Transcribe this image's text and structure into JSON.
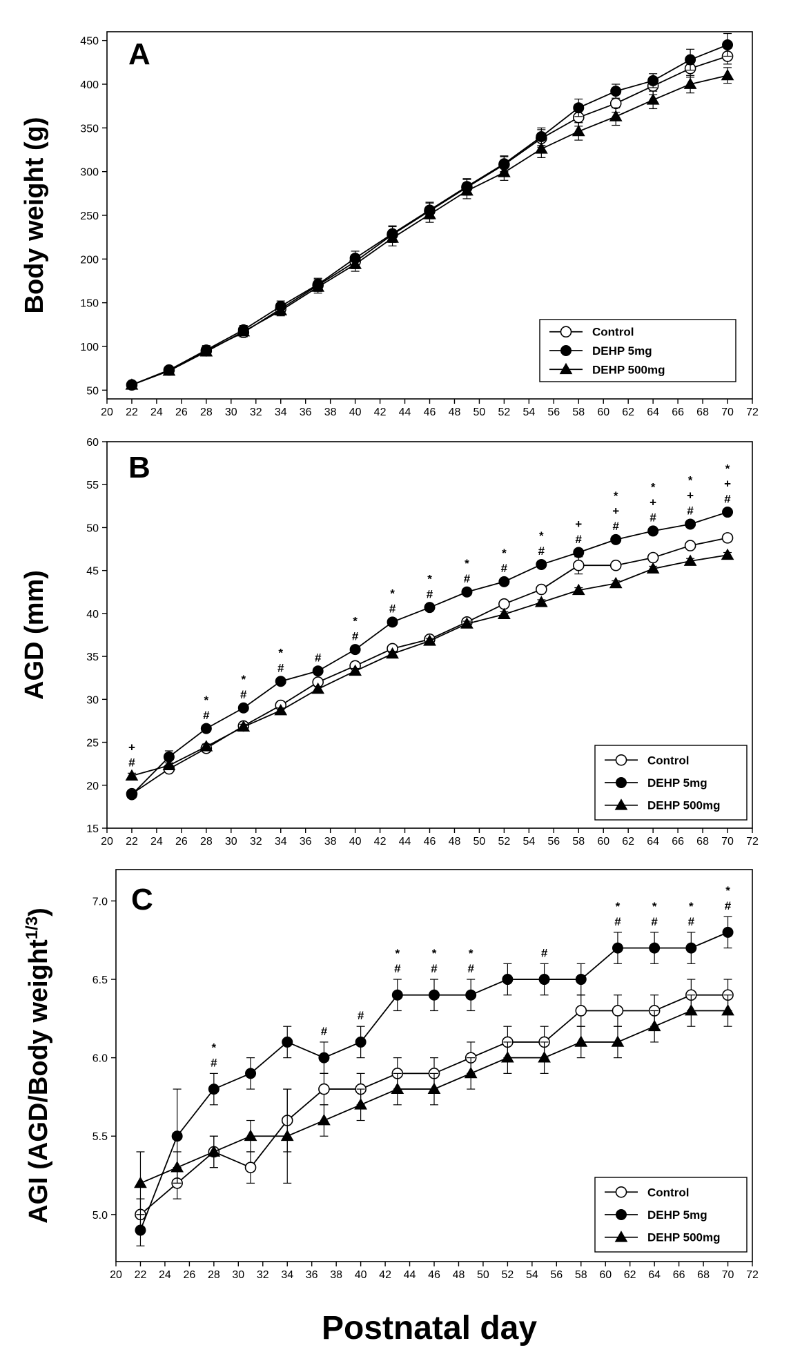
{
  "figure": {
    "xlabel": "Postnatal day"
  },
  "chart_data": [
    {
      "type": "line",
      "panel_label": "A",
      "ylabel": "Body weight (g)",
      "xlim": [
        20,
        72
      ],
      "ylim": [
        40,
        460
      ],
      "xticks": [
        20,
        22,
        24,
        26,
        28,
        30,
        32,
        34,
        36,
        38,
        40,
        42,
        44,
        46,
        48,
        50,
        52,
        54,
        56,
        58,
        60,
        62,
        64,
        66,
        68,
        70,
        72
      ],
      "yticks": [
        50,
        100,
        150,
        200,
        250,
        300,
        350,
        400,
        450
      ],
      "x": [
        22,
        25,
        28,
        31,
        34,
        37,
        40,
        43,
        46,
        49,
        52,
        55,
        58,
        61,
        64,
        67,
        70
      ],
      "legend": {
        "position": "bottom-right"
      },
      "series": [
        {
          "name": "Control",
          "marker": "open-circle",
          "values": [
            56,
            73,
            95,
            116,
            143,
            170,
            197,
            228,
            255,
            282,
            308,
            338,
            362,
            378,
            398,
            418,
            432
          ],
          "errors": [
            4,
            4,
            5,
            5,
            6,
            7,
            8,
            9,
            9,
            9,
            9,
            10,
            10,
            10,
            10,
            10,
            9
          ]
        },
        {
          "name": "DEHP 5mg",
          "marker": "filled-circle",
          "values": [
            56,
            73,
            96,
            119,
            146,
            171,
            201,
            229,
            256,
            283,
            309,
            340,
            373,
            392,
            404,
            428,
            445
          ],
          "errors": [
            4,
            4,
            5,
            5,
            6,
            7,
            8,
            9,
            9,
            9,
            9,
            10,
            10,
            8,
            8,
            12,
            13
          ]
        },
        {
          "name": "DEHP 500mg",
          "marker": "filled-triangle",
          "values": [
            56,
            72,
            94,
            117,
            141,
            168,
            194,
            224,
            251,
            278,
            299,
            326,
            346,
            363,
            382,
            400,
            410
          ],
          "errors": [
            4,
            4,
            5,
            5,
            6,
            7,
            8,
            9,
            9,
            9,
            9,
            10,
            10,
            10,
            10,
            10,
            9
          ]
        }
      ],
      "annotations": []
    },
    {
      "type": "line",
      "panel_label": "B",
      "ylabel": "AGD (mm)",
      "xlim": [
        20,
        72
      ],
      "ylim": [
        15,
        60
      ],
      "xticks": [
        20,
        22,
        24,
        26,
        28,
        30,
        32,
        34,
        36,
        38,
        40,
        42,
        44,
        46,
        48,
        50,
        52,
        54,
        56,
        58,
        60,
        62,
        64,
        66,
        68,
        70,
        72
      ],
      "yticks": [
        15,
        20,
        25,
        30,
        35,
        40,
        45,
        50,
        55,
        60
      ],
      "x": [
        22,
        25,
        28,
        31,
        34,
        37,
        40,
        43,
        46,
        49,
        52,
        55,
        58,
        61,
        64,
        67,
        70
      ],
      "legend": {
        "position": "bottom-right"
      },
      "series": [
        {
          "name": "Control",
          "marker": "open-circle",
          "values": [
            19.0,
            21.9,
            24.3,
            26.9,
            29.3,
            32.0,
            33.9,
            35.9,
            37.0,
            39.0,
            41.1,
            42.8,
            45.6,
            45.6,
            46.5,
            47.9,
            48.8
          ],
          "errors": [
            0.3,
            0.3,
            0.3,
            0.3,
            0.3,
            0.3,
            0.3,
            0.3,
            0.3,
            0.3,
            0.3,
            0.3,
            1.0,
            0.3,
            0.3,
            0.3,
            0.3
          ]
        },
        {
          "name": "DEHP 5mg",
          "marker": "filled-circle",
          "values": [
            18.9,
            23.3,
            26.6,
            29.0,
            32.1,
            33.3,
            35.8,
            39.0,
            40.7,
            42.5,
            43.7,
            45.7,
            47.1,
            48.6,
            49.6,
            50.4,
            51.8
          ],
          "errors": [
            0.3,
            0.7,
            0.3,
            0.3,
            0.3,
            0.3,
            0.3,
            0.3,
            0.3,
            0.3,
            0.3,
            0.3,
            0.3,
            0.3,
            0.3,
            0.3,
            0.3
          ]
        },
        {
          "name": "DEHP 500mg",
          "marker": "filled-triangle",
          "values": [
            21.1,
            22.3,
            24.5,
            26.8,
            28.7,
            31.2,
            33.3,
            35.3,
            36.8,
            38.8,
            39.9,
            41.3,
            42.7,
            43.5,
            45.2,
            46.1,
            46.8
          ],
          "errors": [
            0.3,
            0.3,
            0.3,
            0.3,
            0.3,
            0.3,
            0.3,
            0.3,
            0.3,
            0.3,
            0.3,
            0.3,
            0.3,
            0.3,
            0.3,
            0.3,
            0.3
          ]
        }
      ],
      "annotations": [
        {
          "x": 22,
          "symbols": [
            "+",
            "#"
          ]
        },
        {
          "x": 28,
          "symbols": [
            "*",
            "#"
          ]
        },
        {
          "x": 31,
          "symbols": [
            "*",
            "#"
          ]
        },
        {
          "x": 34,
          "symbols": [
            "*",
            "#"
          ]
        },
        {
          "x": 37,
          "symbols": [
            "#"
          ]
        },
        {
          "x": 40,
          "symbols": [
            "*",
            "#"
          ]
        },
        {
          "x": 43,
          "symbols": [
            "*",
            "#"
          ]
        },
        {
          "x": 46,
          "symbols": [
            "*",
            "#"
          ]
        },
        {
          "x": 49,
          "symbols": [
            "*",
            "#"
          ]
        },
        {
          "x": 52,
          "symbols": [
            "*",
            "#"
          ]
        },
        {
          "x": 55,
          "symbols": [
            "*",
            "#"
          ]
        },
        {
          "x": 58,
          "symbols": [
            "+",
            "#"
          ]
        },
        {
          "x": 61,
          "symbols": [
            "*",
            "+",
            "#"
          ]
        },
        {
          "x": 64,
          "symbols": [
            "*",
            "+",
            "#"
          ]
        },
        {
          "x": 67,
          "symbols": [
            "*",
            "+",
            "#"
          ]
        },
        {
          "x": 70,
          "symbols": [
            "*",
            "+",
            "#"
          ]
        }
      ]
    },
    {
      "type": "line",
      "panel_label": "C",
      "ylabel": "AGI (AGD/Body weight",
      "ylabel_superscript": "1/3",
      "ylabel_suffix": ")",
      "xlim": [
        20,
        72
      ],
      "ylim": [
        4.7,
        7.2
      ],
      "xticks": [
        20,
        22,
        24,
        26,
        28,
        30,
        32,
        34,
        36,
        38,
        40,
        42,
        44,
        46,
        48,
        50,
        52,
        54,
        56,
        58,
        60,
        62,
        64,
        66,
        68,
        70,
        72
      ],
      "yticks": [
        "5.0",
        "5.5",
        "6.0",
        "6.5",
        "7.0"
      ],
      "x": [
        22,
        25,
        28,
        31,
        34,
        37,
        40,
        43,
        46,
        49,
        52,
        55,
        58,
        61,
        64,
        67,
        70
      ],
      "legend": {
        "position": "bottom-right"
      },
      "series": [
        {
          "name": "Control",
          "marker": "open-circle",
          "values": [
            5.0,
            5.2,
            5.4,
            5.3,
            5.6,
            5.8,
            5.8,
            5.9,
            5.9,
            6.0,
            6.1,
            6.1,
            6.3,
            6.3,
            6.3,
            6.4,
            6.4
          ],
          "errors": [
            0.1,
            0.1,
            0.1,
            0.1,
            0.2,
            0.1,
            0.1,
            0.1,
            0.1,
            0.1,
            0.1,
            0.1,
            0.1,
            0.1,
            0.1,
            0.1,
            0.1
          ]
        },
        {
          "name": "DEHP 5mg",
          "marker": "filled-circle",
          "values": [
            4.9,
            5.5,
            5.8,
            5.9,
            6.1,
            6.0,
            6.1,
            6.4,
            6.4,
            6.4,
            6.5,
            6.5,
            6.5,
            6.7,
            6.7,
            6.7,
            6.8
          ],
          "errors": [
            0.1,
            0.3,
            0.1,
            0.1,
            0.1,
            0.1,
            0.1,
            0.1,
            0.1,
            0.1,
            0.1,
            0.1,
            0.1,
            0.1,
            0.1,
            0.1,
            0.1
          ]
        },
        {
          "name": "DEHP 500mg",
          "marker": "filled-triangle",
          "values": [
            5.2,
            5.3,
            5.4,
            5.5,
            5.5,
            5.6,
            5.7,
            5.8,
            5.8,
            5.9,
            6.0,
            6.0,
            6.1,
            6.1,
            6.2,
            6.3,
            6.3
          ],
          "errors": [
            0.2,
            0.1,
            0.1,
            0.1,
            0.3,
            0.1,
            0.1,
            0.1,
            0.1,
            0.1,
            0.1,
            0.1,
            0.1,
            0.1,
            0.1,
            0.1,
            0.1
          ]
        }
      ],
      "annotations": [
        {
          "x": 28,
          "symbols": [
            "*",
            "#"
          ]
        },
        {
          "x": 37,
          "symbols": [
            "#"
          ]
        },
        {
          "x": 40,
          "symbols": [
            "#"
          ]
        },
        {
          "x": 43,
          "symbols": [
            "*",
            "#"
          ]
        },
        {
          "x": 46,
          "symbols": [
            "*",
            "#"
          ]
        },
        {
          "x": 49,
          "symbols": [
            "*",
            "#"
          ]
        },
        {
          "x": 55,
          "symbols": [
            "#"
          ]
        },
        {
          "x": 61,
          "symbols": [
            "*",
            "#"
          ]
        },
        {
          "x": 64,
          "symbols": [
            "*",
            "#"
          ]
        },
        {
          "x": 67,
          "symbols": [
            "*",
            "#"
          ]
        },
        {
          "x": 70,
          "symbols": [
            "*",
            "#"
          ]
        }
      ]
    }
  ]
}
